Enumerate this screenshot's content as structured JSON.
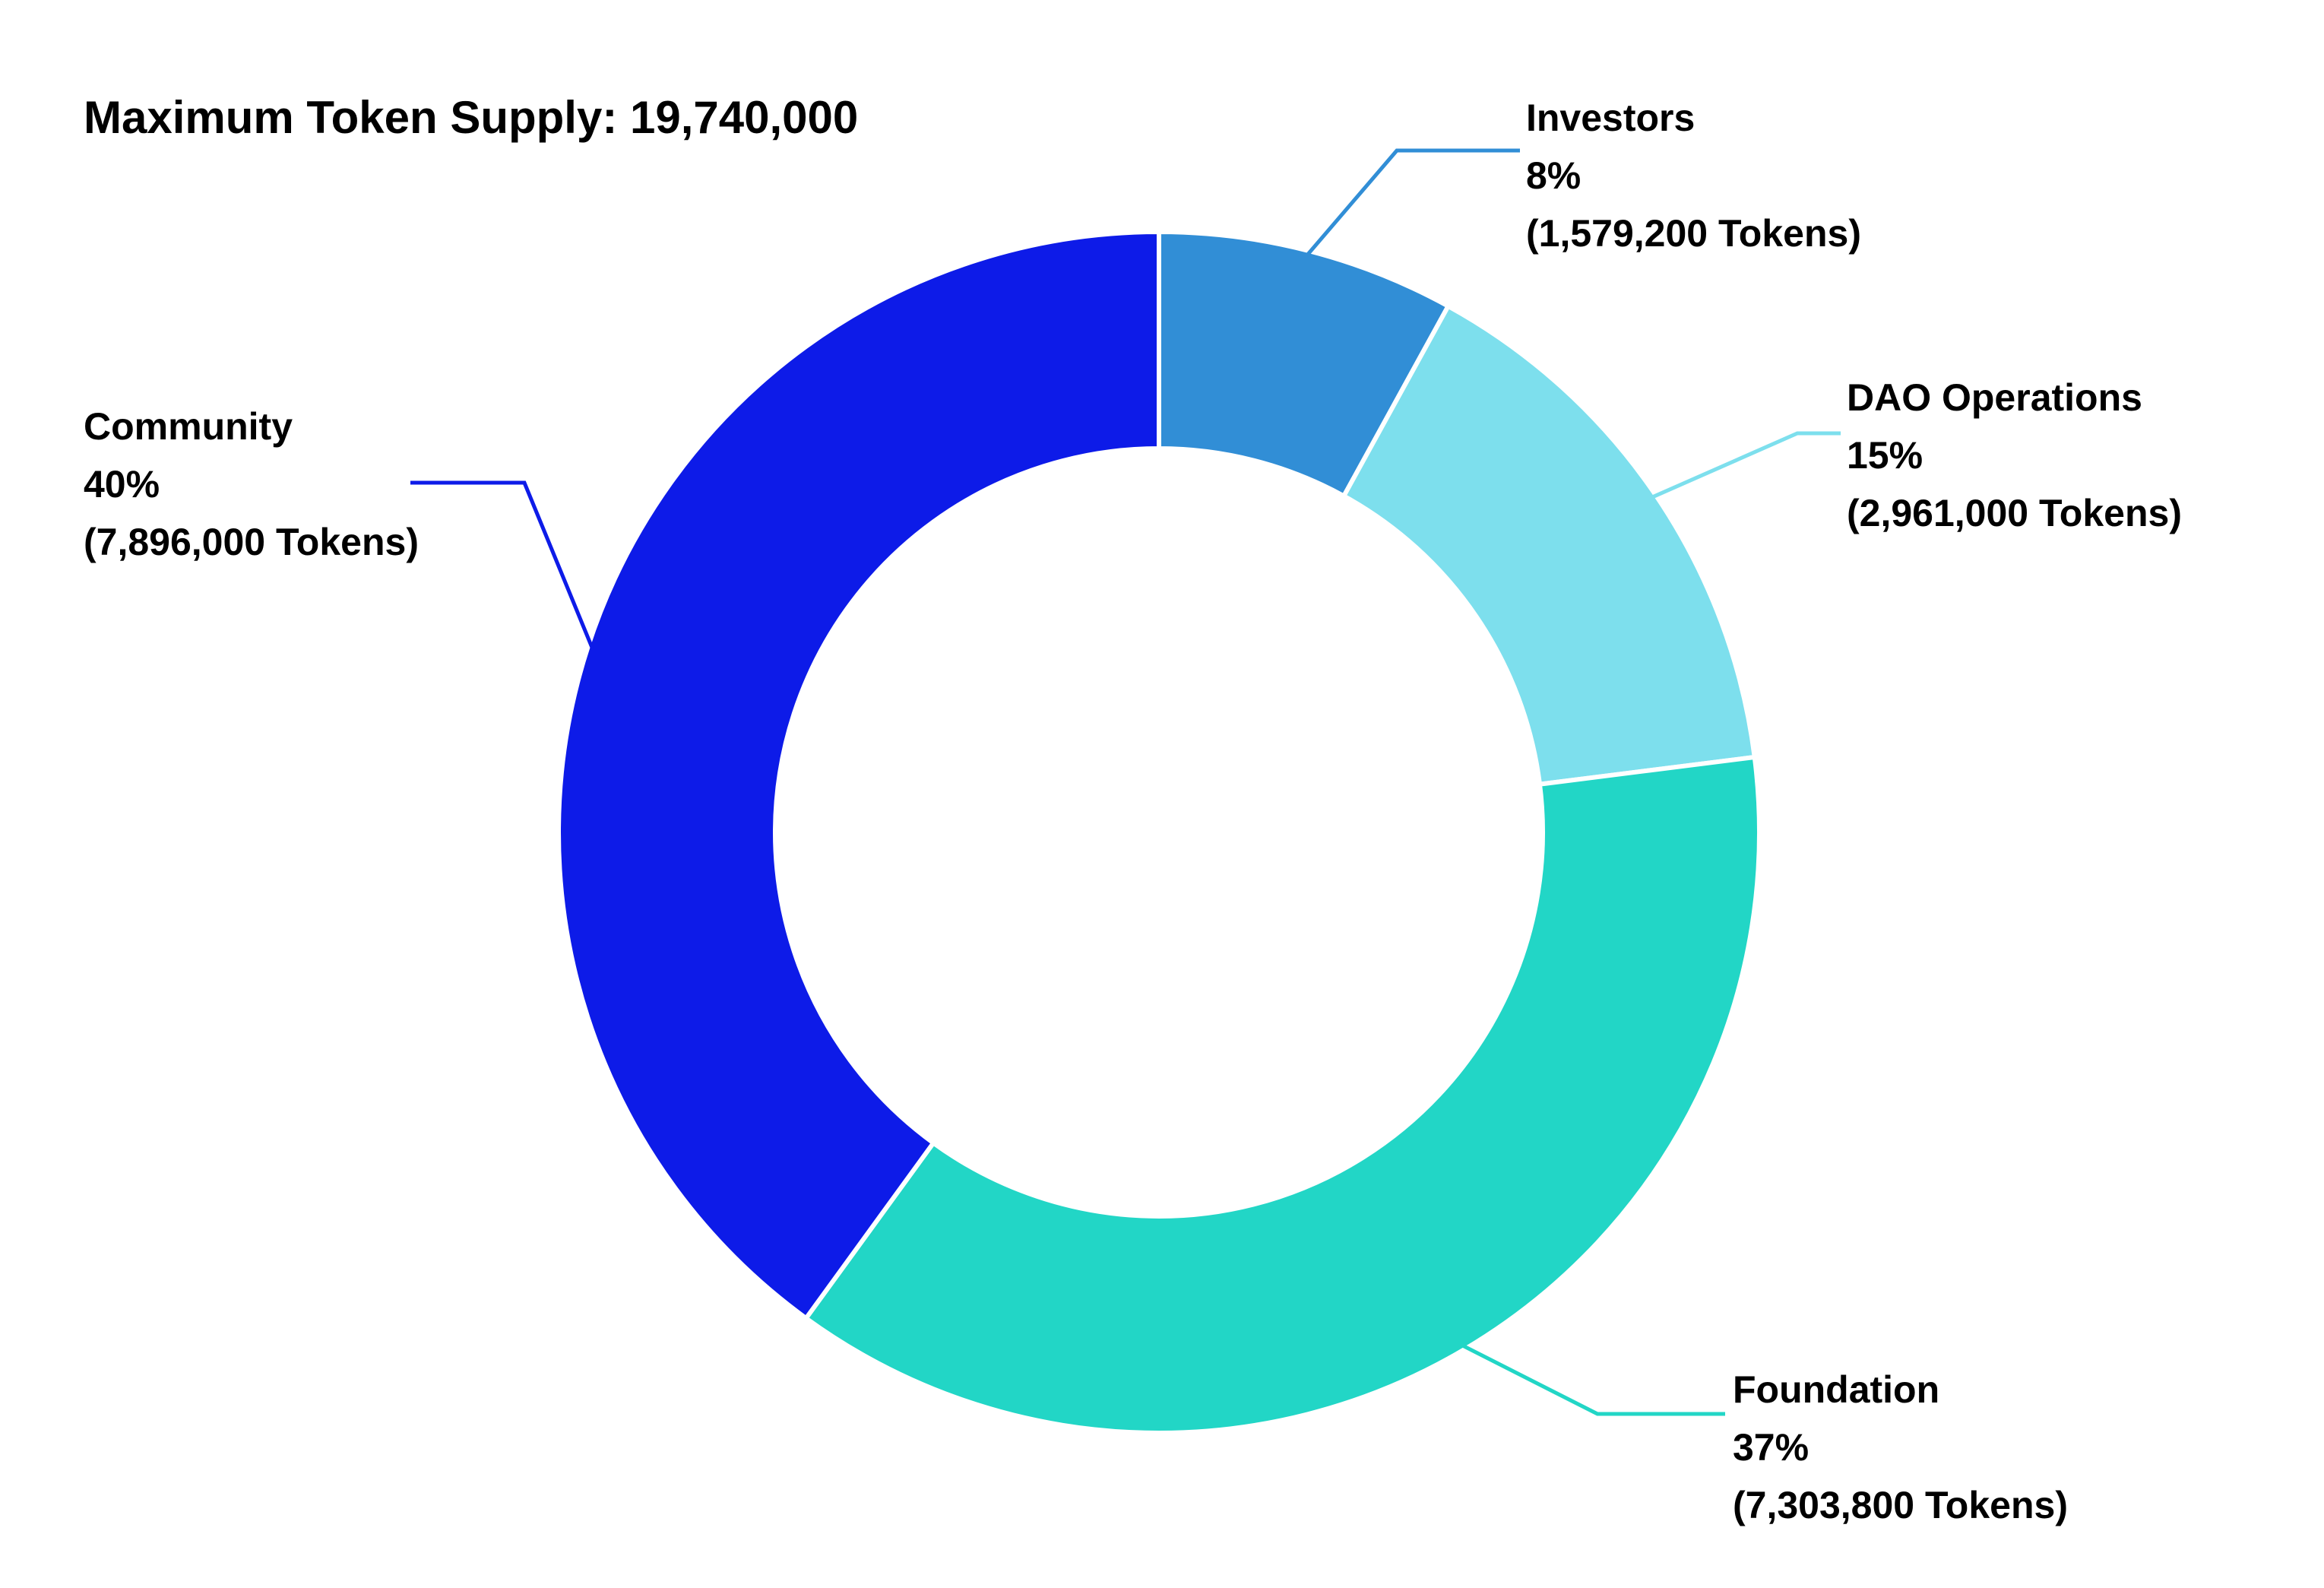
{
  "chart_data": {
    "type": "pie",
    "variant": "donut",
    "title": "Maximum Token Supply: 19,740,000",
    "total": 19740000,
    "legend": "none",
    "grid": false,
    "slices": [
      {
        "name": "Investors",
        "percent": "8%",
        "tokens": "(1,579,200 Tokens)",
        "value": 1579200,
        "color": "#318ed6"
      },
      {
        "name": "DAO Operations",
        "percent": "15%",
        "tokens": "(2,961,000 Tokens)",
        "value": 2961000,
        "color": "#7ddfed"
      },
      {
        "name": "Foundation",
        "percent": "37%",
        "tokens": "(7,303,800 Tokens)",
        "value": 7303800,
        "color": "#22d6c6"
      },
      {
        "name": "Community",
        "percent": "40%",
        "tokens": "(7,896,000 Tokens)",
        "value": 7896000,
        "color": "#0d1be8"
      }
    ]
  }
}
